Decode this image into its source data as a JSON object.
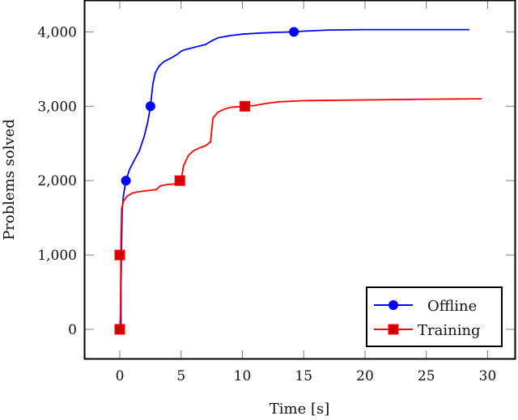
{
  "chart_data": {
    "type": "line",
    "title": "",
    "xlabel": "Time [s]",
    "ylabel": "Problems solved",
    "xlim": [
      -3,
      32
    ],
    "ylim": [
      -400,
      4400
    ],
    "xticks": [
      0,
      5,
      10,
      15,
      20,
      25,
      30
    ],
    "xtick_labels": [
      "0",
      "5",
      "10",
      "15",
      "20",
      "25",
      "30"
    ],
    "yticks": [
      0,
      1000,
      2000,
      3000,
      4000
    ],
    "ytick_labels": [
      "0",
      "1,000",
      "2,000",
      "3,000",
      "4,000"
    ],
    "grid": false,
    "legend_position": "lower right",
    "series": [
      {
        "name": "Offline",
        "color": "#0000ff",
        "marker": "circle",
        "x": [
          0.1,
          0.1,
          0.15,
          0.2,
          0.3,
          0.5,
          0.8,
          1.2,
          1.6,
          2.0,
          2.3,
          2.5,
          2.7,
          2.9,
          3.2,
          3.6,
          4.2,
          4.7,
          5.0,
          5.3,
          6.0,
          7.0,
          7.5,
          8.0,
          9.0,
          10.0,
          11.5,
          13.0,
          14.2,
          15.0,
          17.0,
          20.0,
          25.0,
          28.5
        ],
        "y": [
          0,
          600,
          1200,
          1600,
          1800,
          2000,
          2150,
          2280,
          2400,
          2600,
          2800,
          3000,
          3300,
          3450,
          3540,
          3600,
          3650,
          3700,
          3740,
          3760,
          3790,
          3830,
          3880,
          3920,
          3950,
          3970,
          3985,
          3995,
          4000,
          4010,
          4025,
          4030,
          4030,
          4030
        ],
        "markers": [
          {
            "x": 0.5,
            "y": 2000
          },
          {
            "x": 2.5,
            "y": 3000
          },
          {
            "x": 14.2,
            "y": 4000
          }
        ]
      },
      {
        "name": "Training",
        "color": "#ff0000",
        "marker": "square",
        "x": [
          0.0,
          0.05,
          0.1,
          0.15,
          0.3,
          0.6,
          1.0,
          1.5,
          2.5,
          3.0,
          3.3,
          4.0,
          4.9,
          5.0,
          5.2,
          5.6,
          6.0,
          6.5,
          7.0,
          7.4,
          7.6,
          8.0,
          8.5,
          9.0,
          10.2,
          11.0,
          12.0,
          13.0,
          15.0,
          20.0,
          25.0,
          29.5
        ],
        "y": [
          0,
          200,
          1200,
          1620,
          1720,
          1790,
          1830,
          1850,
          1870,
          1880,
          1930,
          1950,
          1960,
          2000,
          2200,
          2340,
          2400,
          2440,
          2470,
          2520,
          2840,
          2920,
          2960,
          2985,
          3000,
          3010,
          3040,
          3060,
          3075,
          3085,
          3095,
          3100
        ],
        "markers": [
          {
            "x": 0.0,
            "y": 0
          },
          {
            "x": 0.0,
            "y": 1000
          },
          {
            "x": 4.9,
            "y": 2000
          },
          {
            "x": 10.2,
            "y": 3000
          }
        ]
      }
    ]
  },
  "legend": {
    "items": [
      {
        "label": "Offline",
        "color": "#0000ff",
        "marker": "circle"
      },
      {
        "label": "Training",
        "color": "#ff0000",
        "marker": "square"
      }
    ]
  },
  "colors": {
    "offline": "#0000ff",
    "training": "#ff0000",
    "training_marker_fill": "#d40000",
    "axis": "#000000",
    "tick": "#808080"
  }
}
